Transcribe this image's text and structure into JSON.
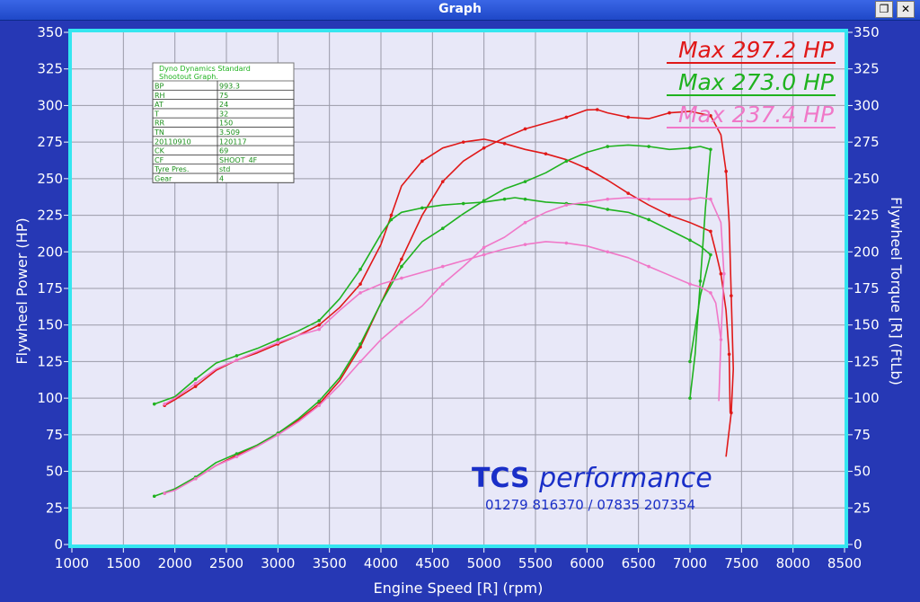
{
  "window": {
    "title": "Graph",
    "restore_icon": "restore-icon",
    "close_icon": "close-icon"
  },
  "colors": {
    "run1": "#e01818",
    "run2": "#1fb21f",
    "run3": "#f078c8",
    "frame": "#35e6f0",
    "plot_bg": "#e8e8f8",
    "grid": "#9a9aa8"
  },
  "chart_data": {
    "type": "line",
    "xlabel": "Engine Speed [R] (rpm)",
    "ylabel_left": "Flywheel Power (HP)",
    "ylabel_right": "Flywheel Torque [R] (FtLb)",
    "xlim": [
      1000,
      8500
    ],
    "ylim": [
      0,
      350
    ],
    "xticks": [
      1000,
      1500,
      2000,
      2500,
      3000,
      3500,
      4000,
      4500,
      5000,
      5500,
      6000,
      6500,
      7000,
      7500,
      8000,
      8500
    ],
    "yticks": [
      0,
      25,
      50,
      75,
      100,
      125,
      150,
      175,
      200,
      225,
      250,
      275,
      300,
      325,
      350
    ],
    "grid": true,
    "legend": [
      {
        "label": "Max 297.2 HP",
        "color": "#e01818"
      },
      {
        "label": "Max 273.0 HP",
        "color": "#1fb21f"
      },
      {
        "label": "Max 237.4 HP",
        "color": "#f078c8"
      }
    ],
    "series": [
      {
        "id": "red-power",
        "color": "#e01818",
        "x": [
          1900,
          2000,
          2200,
          2400,
          2600,
          2800,
          3000,
          3200,
          3400,
          3600,
          3800,
          4000,
          4200,
          4400,
          4600,
          4800,
          5000,
          5200,
          5400,
          5600,
          5800,
          6000,
          6100,
          6200,
          6400,
          6600,
          6800,
          7000,
          7200,
          7300,
          7350,
          7380,
          7400,
          7420,
          7400,
          7350
        ],
        "values": [
          35,
          38,
          45,
          54,
          61,
          68,
          76,
          85,
          96,
          112,
          135,
          165,
          195,
          225,
          248,
          262,
          271,
          278,
          284,
          288,
          292,
          297,
          297.2,
          295,
          292,
          291,
          295,
          296,
          293,
          280,
          255,
          220,
          170,
          120,
          90,
          60
        ]
      },
      {
        "id": "red-torque",
        "color": "#e01818",
        "x": [
          1900,
          2000,
          2200,
          2400,
          2600,
          2800,
          3000,
          3200,
          3400,
          3600,
          3800,
          4000,
          4100,
          4200,
          4400,
          4600,
          4800,
          5000,
          5200,
          5400,
          5600,
          5800,
          6000,
          6200,
          6400,
          6600,
          6800,
          7000,
          7200,
          7250,
          7300,
          7350,
          7380,
          7390
        ],
        "values": [
          95,
          99,
          108,
          119,
          126,
          131,
          137,
          143,
          150,
          162,
          178,
          205,
          225,
          245,
          262,
          271,
          275,
          277,
          274,
          270,
          267,
          263,
          257,
          249,
          240,
          232,
          225,
          220,
          214,
          200,
          185,
          160,
          130,
          90
        ]
      },
      {
        "id": "green-power",
        "color": "#1fb21f",
        "x": [
          1800,
          2000,
          2200,
          2400,
          2600,
          2800,
          3000,
          3200,
          3400,
          3600,
          3800,
          4000,
          4200,
          4400,
          4600,
          4800,
          5000,
          5200,
          5400,
          5600,
          5800,
          6000,
          6200,
          6400,
          6600,
          6800,
          7000,
          7100,
          7200,
          7150,
          7100,
          7050,
          7000
        ],
        "values": [
          33,
          38,
          46,
          56,
          62,
          68,
          76,
          86,
          98,
          114,
          137,
          165,
          190,
          207,
          216,
          226,
          235,
          243,
          248,
          254,
          262,
          268,
          272,
          273,
          272,
          270,
          271,
          272,
          270,
          230,
          180,
          130,
          100
        ]
      },
      {
        "id": "green-torque",
        "color": "#1fb21f",
        "x": [
          1800,
          2000,
          2200,
          2400,
          2600,
          2800,
          3000,
          3200,
          3400,
          3600,
          3800,
          4000,
          4100,
          4200,
          4400,
          4600,
          4800,
          5000,
          5200,
          5300,
          5400,
          5600,
          5800,
          6000,
          6200,
          6400,
          6600,
          6800,
          7000,
          7100,
          7200,
          7100,
          7000
        ],
        "values": [
          96,
          101,
          113,
          124,
          129,
          134,
          140,
          146,
          153,
          168,
          188,
          212,
          222,
          227,
          230,
          232,
          233,
          234,
          236,
          237,
          236,
          234,
          233,
          232,
          229,
          227,
          222,
          215,
          208,
          204,
          198,
          170,
          125
        ]
      },
      {
        "id": "pink-power",
        "color": "#f078c8",
        "x": [
          1900,
          2000,
          2200,
          2400,
          2600,
          2800,
          3000,
          3200,
          3400,
          3600,
          3800,
          4000,
          4200,
          4400,
          4600,
          4800,
          5000,
          5200,
          5400,
          5600,
          5800,
          6000,
          6200,
          6400,
          6600,
          6800,
          7000,
          7100,
          7200,
          7300,
          7330,
          7300
        ],
        "values": [
          35,
          37,
          45,
          54,
          60,
          67,
          75,
          84,
          95,
          109,
          125,
          140,
          152,
          163,
          178,
          190,
          203,
          210,
          220,
          227,
          232,
          234,
          236,
          237,
          236,
          236,
          236,
          237,
          236,
          220,
          185,
          140
        ]
      },
      {
        "id": "pink-torque",
        "color": "#f078c8",
        "x": [
          1900,
          2000,
          2200,
          2400,
          2600,
          2800,
          3000,
          3200,
          3400,
          3600,
          3800,
          4000,
          4200,
          4400,
          4600,
          4800,
          5000,
          5200,
          5400,
          5600,
          5800,
          6000,
          6200,
          6400,
          6600,
          6800,
          7000,
          7100,
          7200,
          7250,
          7300,
          7280
        ],
        "values": [
          96,
          100,
          110,
          120,
          126,
          132,
          138,
          143,
          147,
          160,
          172,
          178,
          182,
          186,
          190,
          194,
          198,
          202,
          205,
          207,
          206,
          204,
          200,
          196,
          190,
          184,
          178,
          176,
          172,
          165,
          140,
          98
        ]
      }
    ]
  },
  "info_table": {
    "title": "Dyno Dynamics Standard Shootout Graph.",
    "rows": [
      [
        "BP",
        "993.3"
      ],
      [
        "RH",
        "75"
      ],
      [
        "AT",
        "24"
      ],
      [
        "T",
        "32"
      ],
      [
        "RR",
        "150"
      ],
      [
        "TN",
        "3.509"
      ],
      [
        "20110910",
        "120117"
      ],
      [
        "CK",
        "69"
      ],
      [
        "CF",
        "SHOOT_4F"
      ],
      [
        "Tyre Pres.",
        "std"
      ],
      [
        "Gear",
        "4"
      ]
    ]
  },
  "logo": {
    "name_bold": "TCS",
    "name_italic": "performance",
    "phone": "01279 816370 / 07835 207354"
  }
}
